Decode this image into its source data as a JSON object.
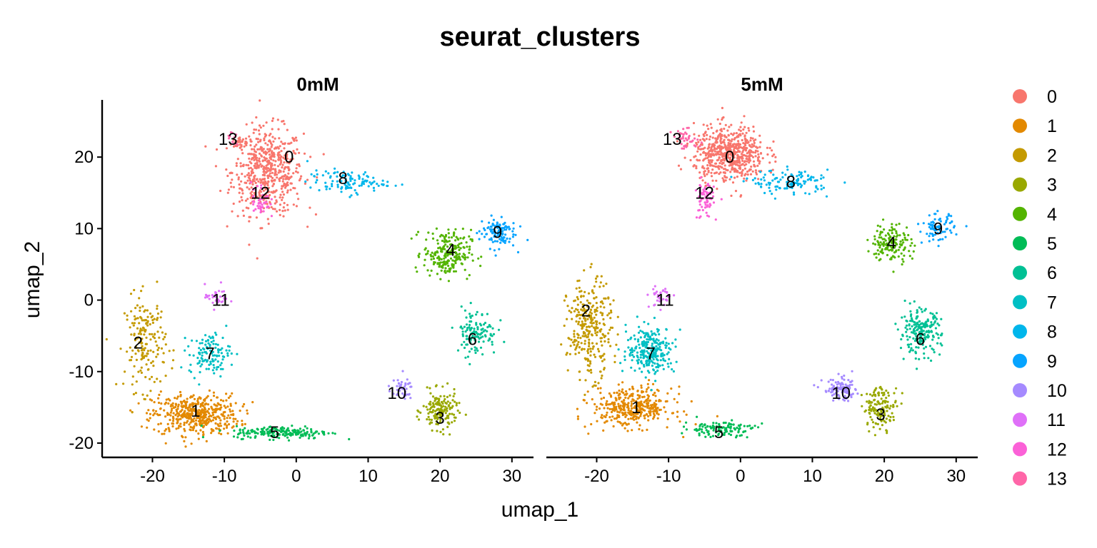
{
  "chart_data": {
    "type": "scatter",
    "title": "seurat_clusters",
    "xlabel": "umap_1",
    "ylabel": "umap_2",
    "xlim": [
      -27,
      33
    ],
    "ylim": [
      -22,
      28
    ],
    "xticks": [
      -20,
      -10,
      0,
      10,
      20,
      30
    ],
    "yticks": [
      -20,
      -10,
      0,
      10,
      20
    ],
    "grid": false,
    "legend_position": "right",
    "legend": [
      {
        "name": "0",
        "color": "#F8766D"
      },
      {
        "name": "1",
        "color": "#E38900"
      },
      {
        "name": "2",
        "color": "#C49A00"
      },
      {
        "name": "3",
        "color": "#99A800"
      },
      {
        "name": "4",
        "color": "#53B400"
      },
      {
        "name": "5",
        "color": "#00BC56"
      },
      {
        "name": "6",
        "color": "#00C094"
      },
      {
        "name": "7",
        "color": "#00BFC4"
      },
      {
        "name": "8",
        "color": "#00B6EB"
      },
      {
        "name": "9",
        "color": "#06A4FF"
      },
      {
        "name": "10",
        "color": "#A58AFF"
      },
      {
        "name": "11",
        "color": "#DF70F8"
      },
      {
        "name": "12",
        "color": "#FB61D7"
      },
      {
        "name": "13",
        "color": "#FF66A8"
      }
    ],
    "panels": [
      {
        "name": "0mM",
        "clusters": [
          {
            "id": "0",
            "label_x": -1,
            "label_y": 20,
            "points": [
              [
                -4,
                18,
                4.5,
                5.5,
                560
              ],
              [
                -8,
                22,
                1.3,
                0.8,
                25
              ]
            ]
          },
          {
            "id": "1",
            "label_x": -14,
            "label_y": -15.5,
            "points": [
              [
                -14,
                -16,
                5.5,
                2.6,
                470
              ]
            ]
          },
          {
            "id": "2",
            "label_x": -22,
            "label_y": -6,
            "points": [
              [
                -21,
                -6,
                2.6,
                6,
                180
              ]
            ]
          },
          {
            "id": "3",
            "label_x": 20,
            "label_y": -16.5,
            "points": [
              [
                20,
                -15.5,
                2.2,
                2.4,
                160
              ]
            ]
          },
          {
            "id": "4",
            "label_x": 21.5,
            "label_y": 7,
            "points": [
              [
                21,
                6.5,
                3,
                3,
                230
              ]
            ]
          },
          {
            "id": "5",
            "label_x": -3,
            "label_y": -18.5,
            "points": [
              [
                -2,
                -18.5,
                6,
                0.8,
                190
              ]
            ]
          },
          {
            "id": "6",
            "label_x": 24.5,
            "label_y": -5.5,
            "points": [
              [
                25,
                -4.5,
                2.6,
                3,
                120
              ]
            ]
          },
          {
            "id": "7",
            "label_x": -12,
            "label_y": -7.5,
            "points": [
              [
                -12,
                -7.5,
                2.6,
                2.6,
                120
              ]
            ]
          },
          {
            "id": "8",
            "label_x": 6.5,
            "label_y": 17,
            "points": [
              [
                7,
                16.5,
                5,
                1.5,
                110
              ]
            ]
          },
          {
            "id": "9",
            "label_x": 28,
            "label_y": 9.5,
            "points": [
              [
                28,
                9.5,
                2.3,
                2,
                110
              ]
            ]
          },
          {
            "id": "10",
            "label_x": 14,
            "label_y": -13,
            "points": [
              [
                14.5,
                -12.5,
                1.6,
                1.3,
                40
              ]
            ]
          },
          {
            "id": "11",
            "label_x": -10.5,
            "label_y": 0,
            "points": [
              [
                -11,
                0.5,
                1.5,
                1.5,
                35
              ]
            ]
          },
          {
            "id": "12",
            "label_x": -5,
            "label_y": 15,
            "points": [
              [
                -5,
                14,
                1.2,
                2.4,
                45
              ]
            ]
          },
          {
            "id": "13",
            "label_x": -9.5,
            "label_y": 22.5,
            "points": [
              [
                -9,
                22.5,
                0.8,
                0.8,
                10
              ]
            ]
          }
        ]
      },
      {
        "name": "5mM",
        "clusters": [
          {
            "id": "0",
            "label_x": -1.5,
            "label_y": 20,
            "points": [
              [
                -1.5,
                20.5,
                4.5,
                3.5,
                600
              ]
            ]
          },
          {
            "id": "1",
            "label_x": -14.5,
            "label_y": -15,
            "points": [
              [
                -15,
                -15,
                5,
                2.5,
                370
              ]
            ]
          },
          {
            "id": "2",
            "label_x": -21.5,
            "label_y": -1.5,
            "points": [
              [
                -21,
                -4,
                2.8,
                6,
                300
              ]
            ]
          },
          {
            "id": "3",
            "label_x": 19.5,
            "label_y": -16,
            "points": [
              [
                19.5,
                -15,
                2.2,
                2.6,
                140
              ]
            ]
          },
          {
            "id": "4",
            "label_x": 21,
            "label_y": 8,
            "points": [
              [
                21,
                8,
                2.5,
                2.5,
                150
              ]
            ]
          },
          {
            "id": "5",
            "label_x": -3,
            "label_y": -18.5,
            "points": [
              [
                -3,
                -18,
                4.5,
                1,
                120
              ]
            ]
          },
          {
            "id": "6",
            "label_x": 25,
            "label_y": -5.5,
            "points": [
              [
                25,
                -4.5,
                2.6,
                2.8,
                200
              ]
            ]
          },
          {
            "id": "7",
            "label_x": -12.5,
            "label_y": -7.5,
            "points": [
              [
                -12.5,
                -7,
                3,
                3,
                260
              ]
            ]
          },
          {
            "id": "8",
            "label_x": 7,
            "label_y": 16.5,
            "points": [
              [
                7,
                16.5,
                5,
                1.5,
                120
              ]
            ]
          },
          {
            "id": "9",
            "label_x": 27.5,
            "label_y": 10,
            "points": [
              [
                27.5,
                10,
                2,
                1.8,
                80
              ]
            ]
          },
          {
            "id": "10",
            "label_x": 14,
            "label_y": -13,
            "points": [
              [
                14,
                -12.5,
                2.3,
                1.4,
                100
              ]
            ]
          },
          {
            "id": "11",
            "label_x": -10.5,
            "label_y": 0,
            "points": [
              [
                -11,
                0.5,
                1.5,
                1.5,
                35
              ]
            ]
          },
          {
            "id": "12",
            "label_x": -5,
            "label_y": 15,
            "points": [
              [
                -5,
                14,
                1.2,
                2.4,
                70
              ]
            ]
          },
          {
            "id": "13",
            "label_x": -9.5,
            "label_y": 22.5,
            "points": [
              [
                -7.5,
                22.5,
                1.8,
                1.2,
                40
              ]
            ]
          }
        ]
      }
    ]
  }
}
